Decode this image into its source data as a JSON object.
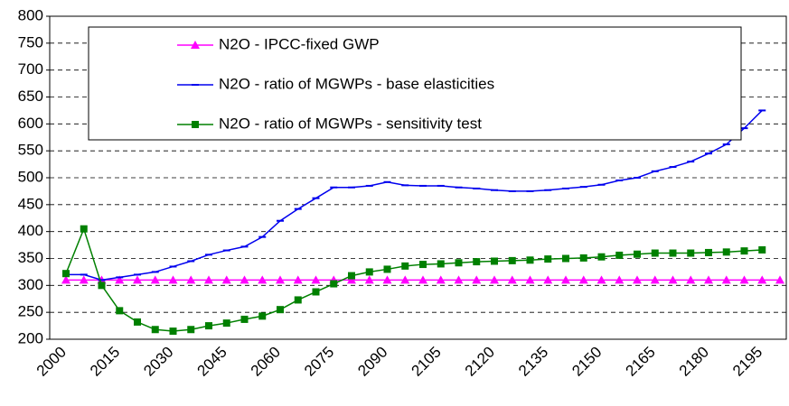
{
  "chart_data": {
    "type": "line",
    "categories": [
      "2000",
      null,
      null,
      "2015",
      null,
      null,
      "2030",
      null,
      null,
      "2045",
      null,
      null,
      "2060",
      null,
      null,
      "2075",
      null,
      null,
      "2090",
      null,
      null,
      "2105",
      null,
      null,
      "2120",
      null,
      null,
      "2135",
      null,
      null,
      "2150",
      null,
      null,
      "2165",
      null,
      null,
      "2180",
      null,
      null,
      "2195",
      null
    ],
    "series": [
      {
        "name": "N2O - IPCC-fixed GWP",
        "color": "#ff00ff",
        "marker": "triangle",
        "values": [
          310,
          310,
          310,
          310,
          310,
          310,
          310,
          310,
          310,
          310,
          310,
          310,
          310,
          310,
          310,
          310,
          310,
          310,
          310,
          310,
          310,
          310,
          310,
          310,
          310,
          310,
          310,
          310,
          310,
          310,
          310,
          310,
          310,
          310,
          310,
          310,
          310,
          310,
          310,
          310,
          310
        ]
      },
      {
        "name": "N2O - ratio of MGWPs - base elasticities",
        "color": "#0000ee",
        "marker": "dash",
        "values": [
          320,
          320,
          310,
          315,
          320,
          325,
          335,
          345,
          357,
          365,
          372,
          390,
          420,
          442,
          462,
          482,
          482,
          485,
          492,
          486,
          485,
          485,
          482,
          480,
          477,
          475,
          475,
          477,
          480,
          483,
          487,
          495,
          500,
          512,
          520,
          530,
          545,
          562,
          592,
          625,
          null
        ]
      },
      {
        "name": "N2O - ratio of MGWPs - sensitivity test",
        "color": "#008000",
        "marker": "square",
        "values": [
          322,
          405,
          300,
          253,
          232,
          218,
          215,
          218,
          225,
          230,
          237,
          243,
          255,
          273,
          288,
          303,
          318,
          325,
          330,
          336,
          339,
          340,
          342,
          344,
          345,
          346,
          347,
          349,
          350,
          351,
          353,
          356,
          358,
          360,
          360,
          360,
          361,
          362,
          364,
          366,
          null
        ]
      }
    ],
    "ylim": [
      200,
      800
    ],
    "yticks": [
      200,
      250,
      300,
      350,
      400,
      450,
      500,
      550,
      600,
      650,
      700,
      750,
      800
    ],
    "grid": true,
    "legend": "top"
  }
}
